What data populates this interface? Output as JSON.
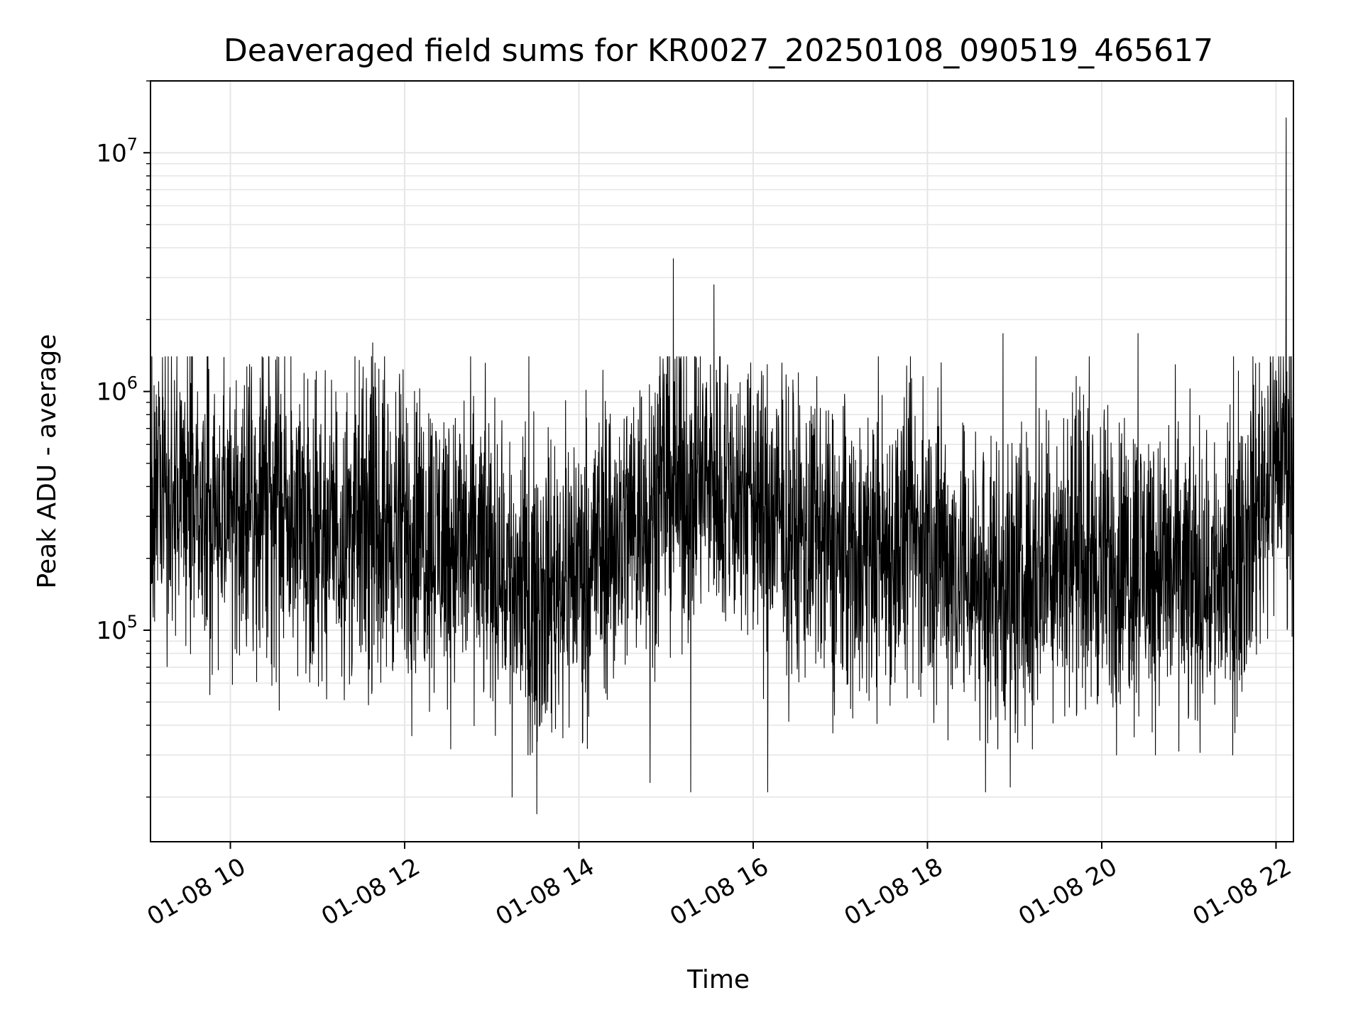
{
  "chart_data": {
    "type": "line",
    "title": "Deaveraged field sums for KR0027_20250108_090519_465617",
    "xlabel": "Time",
    "ylabel": "Peak ADU - average",
    "yscale": "log",
    "xlim": [
      "2025-01-08 09:05",
      "2025-01-08 22:12"
    ],
    "ylim": [
      13000,
      20000000
    ],
    "grid": true,
    "x_tick_labels": [
      "01-08 10",
      "01-08 12",
      "01-08 14",
      "01-08 16",
      "01-08 18",
      "01-08 20",
      "01-08 22"
    ],
    "y_tick_labels": [
      {
        "base": "10",
        "exp": "5",
        "value": 100000
      },
      {
        "base": "10",
        "exp": "6",
        "value": 1000000
      },
      {
        "base": "10",
        "exp": "7",
        "value": 10000000
      }
    ],
    "line_color": "#000000",
    "series": [
      {
        "x": [
          "2025-01-08 09:05",
          "2025-01-08 09:30",
          "2025-01-08 10:00",
          "2025-01-08 10:30",
          "2025-01-08 11:00",
          "2025-01-08 11:30",
          "2025-01-08 12:00",
          "2025-01-08 12:30",
          "2025-01-08 13:00",
          "2025-01-08 13:30",
          "2025-01-08 14:00",
          "2025-01-08 14:30",
          "2025-01-08 15:00",
          "2025-01-08 15:30",
          "2025-01-08 16:00",
          "2025-01-08 16:30",
          "2025-01-08 17:00",
          "2025-01-08 17:30",
          "2025-01-08 18:00",
          "2025-01-08 18:30",
          "2025-01-08 19:00",
          "2025-01-08 19:30",
          "2025-01-08 20:00",
          "2025-01-08 20:30",
          "2025-01-08 21:00",
          "2025-01-08 21:30",
          "2025-01-08 22:00",
          "2025-01-08 22:12"
        ],
        "y": [
          300000,
          350000,
          330000,
          320000,
          280000,
          260000,
          270000,
          240000,
          200000,
          140000,
          190000,
          260000,
          400000,
          420000,
          350000,
          250000,
          210000,
          220000,
          240000,
          170000,
          150000,
          230000,
          190000,
          200000,
          160000,
          180000,
          550000,
          600000
        ]
      }
    ],
    "spikes": [
      {
        "x": "2025-01-08 11:38",
        "y": 1600000
      },
      {
        "x": "2025-01-08 15:05",
        "y": 3600000
      },
      {
        "x": "2025-01-08 15:33",
        "y": 2800000
      },
      {
        "x": "2025-01-08 18:52",
        "y": 1750000
      },
      {
        "x": "2025-01-08 20:25",
        "y": 1750000
      },
      {
        "x": "2025-01-08 22:07",
        "y": 14000000
      }
    ],
    "dips": [
      {
        "x": "2025-01-08 13:31",
        "y": 17000
      },
      {
        "x": "2025-01-08 13:14",
        "y": 20000
      },
      {
        "x": "2025-01-08 15:17",
        "y": 21000
      },
      {
        "x": "2025-01-08 16:10",
        "y": 21000
      },
      {
        "x": "2025-01-08 18:40",
        "y": 21000
      },
      {
        "x": "2025-01-08 18:57",
        "y": 22000
      },
      {
        "x": "2025-01-08 14:49",
        "y": 23000
      }
    ]
  }
}
